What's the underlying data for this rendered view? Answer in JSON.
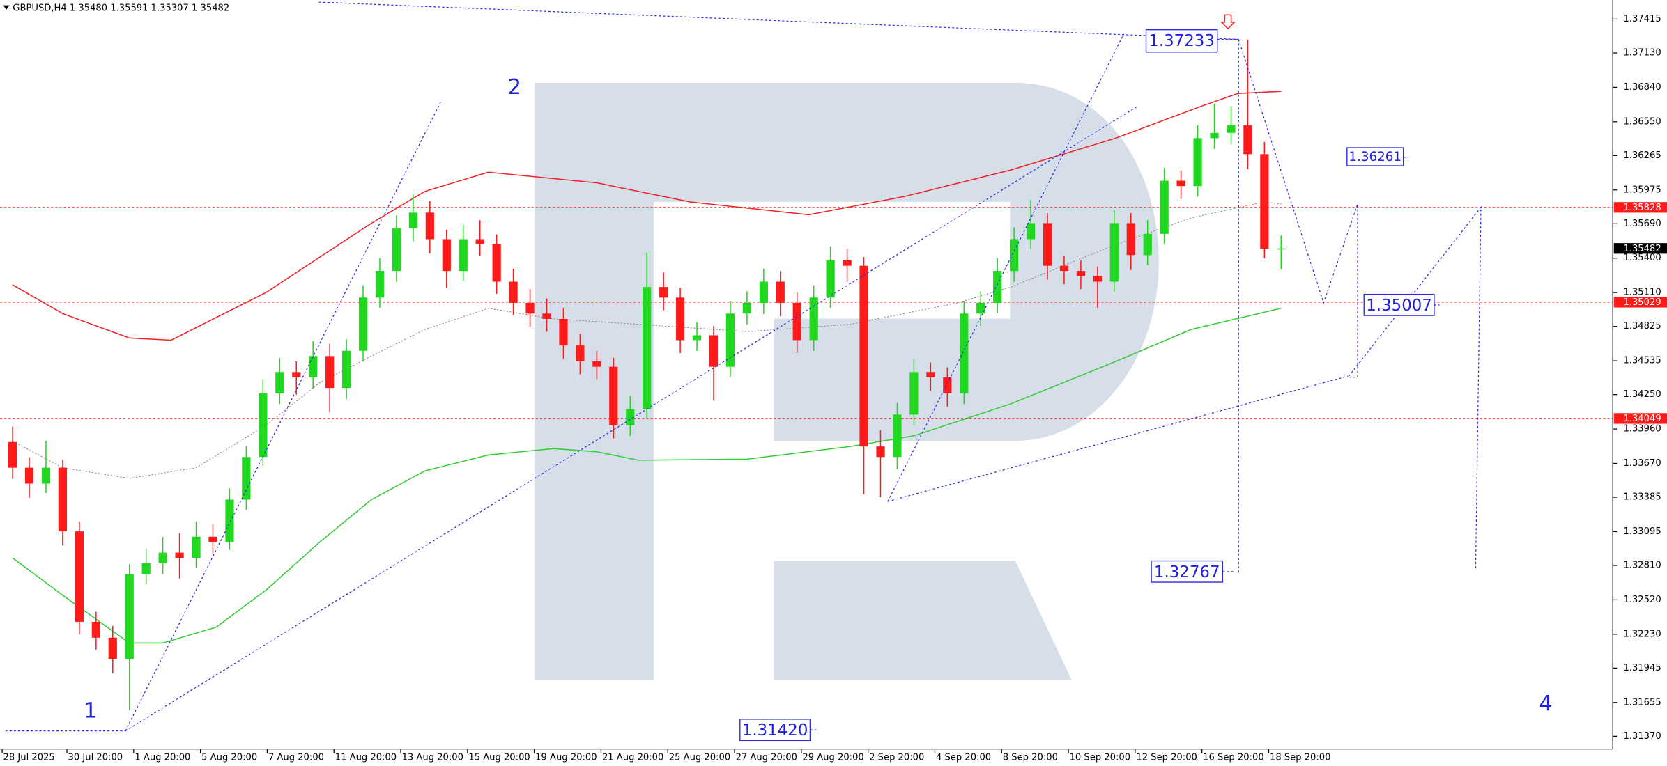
{
  "chart_data": {
    "type": "candlestick",
    "title": "GBPUSD,H4  1.35480 1.35591 1.35307 1.35482",
    "categories": [
      "28 Jul 2025",
      null,
      null,
      "30 Jul 20:00",
      null,
      null,
      null,
      "1 Aug 20:00",
      null,
      null,
      null,
      "5 Aug 20:00",
      null,
      null,
      null,
      "7 Aug 20:00",
      null,
      null,
      null,
      "11 Aug 20:00",
      null,
      null,
      null,
      "13 Aug 20:00",
      null,
      null,
      null,
      "15 Aug 20:00",
      null,
      null,
      null,
      "19 Aug 20:00",
      null,
      null,
      null,
      "21 Aug 20:00",
      null,
      null,
      null,
      "25 Aug 20:00",
      null,
      null,
      null,
      "27 Aug 20:00",
      null,
      null,
      null,
      "29 Aug 20:00",
      null,
      null,
      null,
      "2 Sep 20:00",
      null,
      null,
      null,
      "4 Sep 20:00",
      null,
      null,
      null,
      "8 Sep 20:00",
      null,
      null,
      null,
      "10 Sep 20:00",
      null,
      null,
      null,
      "12 Sep 20:00",
      null,
      null,
      null,
      "16 Sep 20:00",
      null,
      null,
      null,
      "18 Sep 20:00",
      null
    ],
    "candles": [
      [
        1.3385,
        1.3398,
        1.3354,
        1.33634
      ],
      [
        1.33634,
        1.3372,
        1.3338,
        1.335
      ],
      [
        1.335,
        1.3386,
        1.3342,
        1.33634
      ],
      [
        1.33634,
        1.337,
        1.3298,
        1.33097
      ],
      [
        1.33097,
        1.3318,
        1.3223,
        1.32335
      ],
      [
        1.32335,
        1.3242,
        1.321,
        1.32201
      ],
      [
        1.32201,
        1.323,
        1.319,
        1.32022
      ],
      [
        1.32022,
        1.3282,
        1.31591,
        1.32738
      ],
      [
        1.32738,
        1.3295,
        1.3265,
        1.32828
      ],
      [
        1.32828,
        1.3305,
        1.3274,
        1.32918
      ],
      [
        1.32918,
        1.3308,
        1.327,
        1.32873
      ],
      [
        1.32873,
        1.3318,
        1.3279,
        1.33052
      ],
      [
        1.33052,
        1.3316,
        1.329,
        1.33007
      ],
      [
        1.33007,
        1.3346,
        1.3294,
        1.33365
      ],
      [
        1.33365,
        1.3382,
        1.3328,
        1.33724
      ],
      [
        1.33724,
        1.3438,
        1.3365,
        1.34261
      ],
      [
        1.34261,
        1.3456,
        1.3417,
        1.3444
      ],
      [
        1.3444,
        1.3453,
        1.3425,
        1.34396
      ],
      [
        1.34396,
        1.347,
        1.343,
        1.34575
      ],
      [
        1.34575,
        1.3468,
        1.341,
        1.34306
      ],
      [
        1.34306,
        1.3472,
        1.3421,
        1.3462
      ],
      [
        1.3462,
        1.3517,
        1.3453,
        1.35068
      ],
      [
        1.35068,
        1.354,
        1.3498,
        1.35292
      ],
      [
        1.35292,
        1.3576,
        1.352,
        1.3565
      ],
      [
        1.3565,
        1.35937,
        1.3554,
        1.35784
      ],
      [
        1.35784,
        1.3588,
        1.3544,
        1.3556
      ],
      [
        1.3556,
        1.3564,
        1.3515,
        1.35292
      ],
      [
        1.35292,
        1.3568,
        1.3521,
        1.3556
      ],
      [
        1.3556,
        1.3572,
        1.3542,
        1.3552
      ],
      [
        1.3552,
        1.356,
        1.351,
        1.35202
      ],
      [
        1.35202,
        1.3531,
        1.3492,
        1.35023
      ],
      [
        1.35023,
        1.3514,
        1.3482,
        1.34933
      ],
      [
        1.34933,
        1.3506,
        1.3478,
        1.34888
      ],
      [
        1.34888,
        1.3498,
        1.3455,
        1.34664
      ],
      [
        1.34664,
        1.3476,
        1.3442,
        1.3453
      ],
      [
        1.3453,
        1.3462,
        1.3438,
        1.34485
      ],
      [
        1.34485,
        1.3456,
        1.3388,
        1.33992
      ],
      [
        1.33992,
        1.3424,
        1.339,
        1.34127
      ],
      [
        1.34127,
        1.3545,
        1.3405,
        1.35157
      ],
      [
        1.35157,
        1.3528,
        1.3496,
        1.35068
      ],
      [
        1.35068,
        1.3515,
        1.346,
        1.34709
      ],
      [
        1.34709,
        1.3486,
        1.3462,
        1.3475
      ],
      [
        1.3475,
        1.3483,
        1.342,
        1.34485
      ],
      [
        1.34485,
        1.3504,
        1.344,
        1.34933
      ],
      [
        1.34933,
        1.3512,
        1.3484,
        1.35023
      ],
      [
        1.35023,
        1.3531,
        1.3493,
        1.35202
      ],
      [
        1.35202,
        1.3529,
        1.3491,
        1.35023
      ],
      [
        1.35023,
        1.3511,
        1.346,
        1.34709
      ],
      [
        1.34709,
        1.3517,
        1.3462,
        1.35068
      ],
      [
        1.35068,
        1.355,
        1.3498,
        1.35381
      ],
      [
        1.35381,
        1.3548,
        1.352,
        1.35336
      ],
      [
        1.35336,
        1.3541,
        1.3341,
        1.33813
      ],
      [
        1.33813,
        1.3395,
        1.33385,
        1.33724
      ],
      [
        1.33724,
        1.3418,
        1.3362,
        1.34082
      ],
      [
        1.34082,
        1.3455,
        1.3399,
        1.3444
      ],
      [
        1.3444,
        1.3452,
        1.3428,
        1.34396
      ],
      [
        1.34396,
        1.3448,
        1.3415,
        1.34261
      ],
      [
        1.34261,
        1.3504,
        1.3417,
        1.34933
      ],
      [
        1.34933,
        1.3512,
        1.3483,
        1.35023
      ],
      [
        1.35023,
        1.354,
        1.3494,
        1.35292
      ],
      [
        1.35292,
        1.3566,
        1.352,
        1.3556
      ],
      [
        1.3556,
        1.35892,
        1.3548,
        1.35695
      ],
      [
        1.35695,
        1.3578,
        1.3522,
        1.35336
      ],
      [
        1.35336,
        1.3542,
        1.3518,
        1.35292
      ],
      [
        1.35292,
        1.3538,
        1.3514,
        1.3525
      ],
      [
        1.3525,
        1.3533,
        1.3498,
        1.35202
      ],
      [
        1.35202,
        1.358,
        1.3512,
        1.35695
      ],
      [
        1.35695,
        1.3578,
        1.353,
        1.35426
      ],
      [
        1.35426,
        1.3572,
        1.3534,
        1.35605
      ],
      [
        1.35605,
        1.3616,
        1.3552,
        1.36053
      ],
      [
        1.36053,
        1.3614,
        1.359,
        1.36008
      ],
      [
        1.36008,
        1.3652,
        1.3592,
        1.36412
      ],
      [
        1.36412,
        1.367,
        1.3632,
        1.36456
      ],
      [
        1.36456,
        1.3668,
        1.3636,
        1.36519
      ],
      [
        1.36519,
        1.3724,
        1.3615,
        1.36277
      ],
      [
        1.36277,
        1.3638,
        1.354,
        1.3548
      ],
      [
        1.3548,
        1.35591,
        1.35307,
        1.35482
      ]
    ],
    "bull_color": "#1fd81f",
    "bear_color": "#ff1a1a",
    "ylim": [
      1.31263,
      1.37576
    ],
    "yticks": [
      1.37415,
      {
        "value": 1.3713,
        "label": "1.37130"
      },
      {
        "value": 1.3684,
        "label": "1.36840"
      },
      {
        "value": 1.3655,
        "label": "1.36550"
      },
      1.36265,
      1.35975,
      {
        "value": 1.3569,
        "label": "1.35690"
      },
      {
        "value": 1.354,
        "label": "1.35400"
      },
      {
        "value": 1.3511,
        "label": "1.35110"
      },
      1.34825,
      1.34535,
      {
        "value": 1.3425,
        "label": "1.34250"
      },
      {
        "value": 1.3396,
        "label": "1.33960"
      },
      {
        "value": 1.3367,
        "label": "1.33670"
      },
      1.33385,
      1.33095,
      {
        "value": 1.3281,
        "label": "1.32810"
      },
      {
        "value": 1.3252,
        "label": "1.32520"
      },
      {
        "value": 1.3223,
        "label": "1.32230"
      },
      1.31945,
      1.31655,
      {
        "value": 1.3137,
        "label": "1.31370"
      }
    ],
    "levels": [
      {
        "value": 1.35828,
        "color": "#ff1a1a"
      },
      {
        "value": 1.35029,
        "color": "#ff1a1a"
      },
      {
        "value": 1.34049,
        "color": "#ff1a1a"
      }
    ],
    "indicators": [
      {
        "color": "#ee2222",
        "style": "solid",
        "x": [
          0,
          3,
          7,
          9.5,
          15.2,
          21.5,
          24.7,
          28.5,
          35,
          40.6,
          47.7,
          53.4,
          59.8,
          66.1,
          71.2,
          73.4,
          76
        ],
        "values": [
          1.35175,
          1.34933,
          1.34727,
          1.34709,
          1.35112,
          1.35695,
          1.35963,
          1.36125,
          1.36035,
          1.35874,
          1.35766,
          1.35919,
          1.36143,
          1.36412,
          1.3668,
          1.36788,
          1.36806
        ]
      },
      {
        "color": "#8c8c8c",
        "style": "dotted",
        "x": [
          0,
          3,
          7,
          11,
          15.2,
          18.4,
          21.5,
          24.7,
          28.5,
          32.4,
          37.5,
          44,
          50.2,
          56.6,
          59.8,
          66.1,
          70.6,
          75,
          76
        ],
        "values": [
          1.33858,
          1.33634,
          1.33544,
          1.33634,
          1.33992,
          1.34351,
          1.34575,
          1.34799,
          1.34978,
          1.34888,
          1.34843,
          1.34781,
          1.34843,
          1.35023,
          1.35157,
          1.35515,
          1.35739,
          1.35874,
          1.35856
        ]
      },
      {
        "color": "#33cc33",
        "style": "solid",
        "x": [
          0,
          3,
          7,
          9,
          12.2,
          15.2,
          18.4,
          21.5,
          24.7,
          28.5,
          32.4,
          35,
          37.5,
          44,
          50.2,
          54,
          59.8,
          66.1,
          70.6,
          76
        ],
        "values": [
          1.32873,
          1.32559,
          1.32156,
          1.32156,
          1.3229,
          1.32604,
          1.33007,
          1.33365,
          1.33607,
          1.33741,
          1.33795,
          1.33768,
          1.33697,
          1.33706,
          1.33813,
          1.33903,
          1.34172,
          1.3453,
          1.34799,
          1.34978
        ]
      }
    ],
    "annotations": {
      "waves": [
        "1",
        "2",
        "4"
      ],
      "prices": [
        "1.37233",
        "1.36261",
        "1.35007",
        "1.32767",
        "1.31420"
      ]
    }
  }
}
